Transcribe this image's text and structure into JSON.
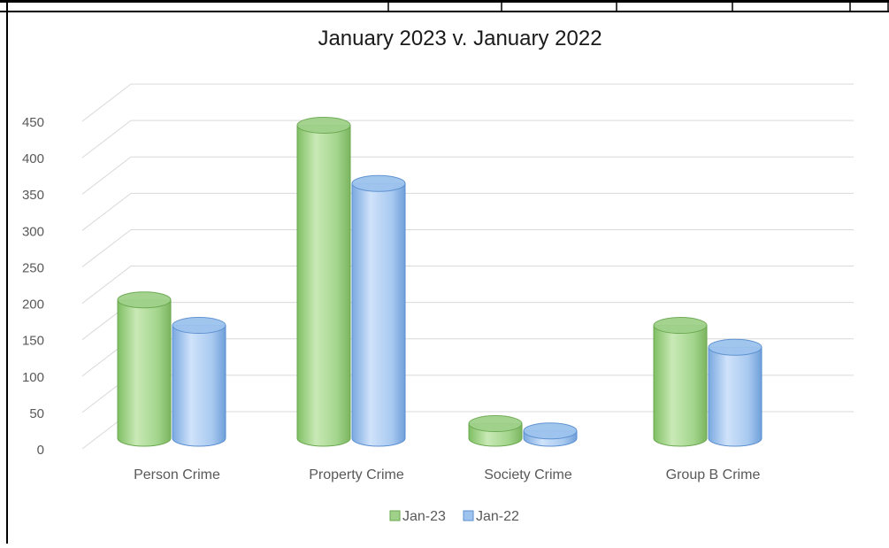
{
  "chart_data": {
    "type": "bar",
    "title": "January 2023 v. January 2022",
    "xlabel": "",
    "ylabel": "",
    "categories": [
      "Person Crime",
      "Property Crime",
      "Society Crime",
      "Group B Crime"
    ],
    "series": [
      {
        "name": "Jan-23",
        "values": [
          190,
          430,
          20,
          155
        ],
        "color": "#9fd18a"
      },
      {
        "name": "Jan-22",
        "values": [
          155,
          350,
          10,
          125
        ],
        "color": "#9dc3ee"
      }
    ],
    "ylim": [
      0,
      450
    ],
    "yticks": [
      0,
      50,
      100,
      150,
      200,
      250,
      300,
      350,
      400,
      450
    ],
    "grid": true,
    "legend": "bottom",
    "style": "3d-cylinder"
  }
}
